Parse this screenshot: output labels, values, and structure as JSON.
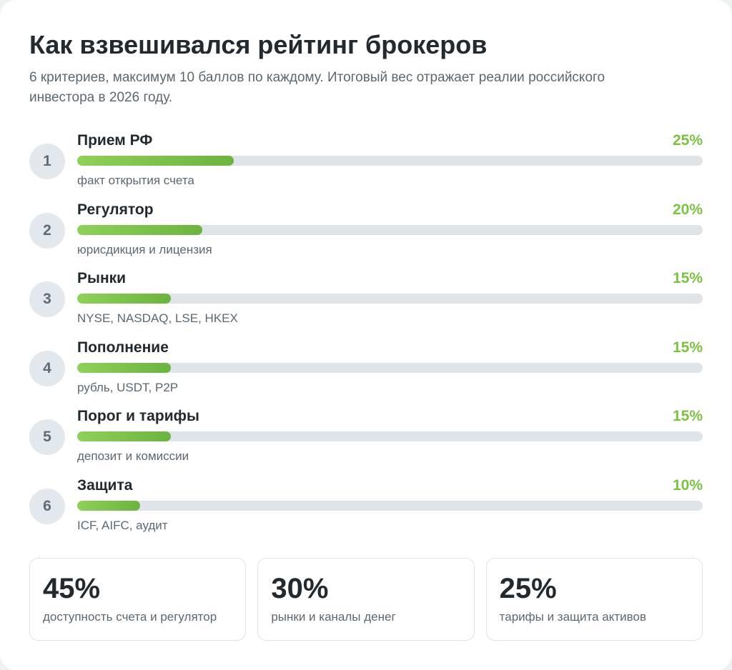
{
  "header": {
    "title": "Как взвешивался рейтинг брокеров",
    "subtitle": "6 критериев, максимум 10 баллов по каждому. Итоговый вес отражает реалии российского инвестора в 2026 году."
  },
  "criteria": [
    {
      "num": "1",
      "title": "Прием РФ",
      "percent": "25%",
      "weight": 25,
      "description": "факт открытия счета"
    },
    {
      "num": "2",
      "title": "Регулятор",
      "percent": "20%",
      "weight": 20,
      "description": "юрисдикция и лицензия"
    },
    {
      "num": "3",
      "title": "Рынки",
      "percent": "15%",
      "weight": 15,
      "description": "NYSE, NASDAQ, LSE, HKEX"
    },
    {
      "num": "4",
      "title": "Пополнение",
      "percent": "15%",
      "weight": 15,
      "description": "рубль, USDT, P2P"
    },
    {
      "num": "5",
      "title": "Порог и тарифы",
      "percent": "15%",
      "weight": 15,
      "description": "депозит и комиссии"
    },
    {
      "num": "6",
      "title": "Защита",
      "percent": "10%",
      "weight": 10,
      "description": "ICF, AIFC, аудит"
    }
  ],
  "bar_scale_max": 100,
  "summary": [
    {
      "value": "45%",
      "label": "доступность счета и регулятор"
    },
    {
      "value": "30%",
      "label": "рынки и каналы денег"
    },
    {
      "value": "25%",
      "label": "тарифы и защита активов"
    }
  ],
  "colors": {
    "accent": "#7cc242",
    "bar_track": "#dfe4e8",
    "circle_bg": "#e3e8ed",
    "text_primary": "#22292f",
    "text_secondary": "#5c6770"
  }
}
